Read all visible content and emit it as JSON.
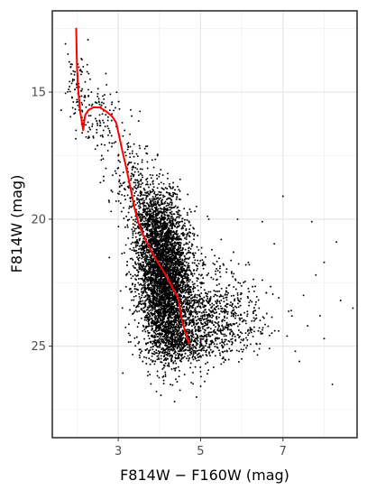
{
  "chart_data": {
    "type": "scatter",
    "title": "",
    "xlabel": "F814W − F160W (mag)",
    "ylabel": "F814W (mag)",
    "xlim": [
      1.4,
      8.8
    ],
    "ylim": [
      28.6,
      11.8
    ],
    "y_reversed": true,
    "grid": true,
    "x_ticks": [
      3,
      5,
      7
    ],
    "x_tick_labels": [
      "3",
      "5",
      "7"
    ],
    "y_ticks": [
      15,
      20,
      25
    ],
    "y_tick_labels": [
      "15",
      "20",
      "25"
    ],
    "x_minor_ticks": [
      2,
      4,
      6,
      8
    ],
    "y_minor_ticks": [
      12.5,
      17.5,
      22.5,
      27.5
    ],
    "scatter_color": "#000000",
    "line_color": "#ff0000",
    "series": [
      {
        "type": "scatter",
        "points": [
          [
            1.72,
            13.1
          ],
          [
            1.78,
            13.5
          ],
          [
            1.85,
            14.0
          ],
          [
            1.9,
            14.5
          ],
          [
            1.95,
            14.9
          ],
          [
            2.0,
            15.3
          ],
          [
            2.05,
            15.7
          ],
          [
            2.1,
            14.3
          ],
          [
            2.15,
            14.0
          ],
          [
            2.2,
            15.2
          ],
          [
            2.25,
            15.8
          ],
          [
            2.3,
            16.4
          ],
          [
            2.4,
            16.8
          ],
          [
            2.5,
            17.1
          ],
          [
            2.6,
            17.5
          ],
          [
            2.7,
            18.0
          ],
          [
            2.2,
            14.6
          ],
          [
            2.35,
            15.0
          ],
          [
            2.45,
            15.4
          ],
          [
            2.55,
            15.9
          ],
          [
            2.65,
            16.2
          ],
          [
            2.8,
            16.6
          ],
          [
            2.9,
            17.0
          ],
          [
            3.0,
            17.5
          ],
          [
            1.85,
            13.9
          ],
          [
            1.95,
            14.2
          ],
          [
            2.05,
            14.8
          ],
          [
            2.12,
            16.0
          ],
          [
            2.3,
            15.5
          ],
          [
            2.5,
            16.3
          ],
          [
            2.75,
            17.3
          ],
          [
            2.95,
            18.2
          ],
          [
            3.1,
            16.2
          ],
          [
            3.25,
            17.0
          ],
          [
            3.4,
            17.8
          ],
          [
            3.55,
            18.5
          ],
          [
            3.15,
            18.8
          ],
          [
            3.3,
            19.3
          ],
          [
            3.5,
            19.8
          ],
          [
            3.65,
            20.2
          ],
          [
            4.2,
            18.4
          ],
          [
            4.5,
            18.9
          ],
          [
            4.9,
            19.5
          ],
          [
            5.2,
            20.0
          ],
          [
            5.5,
            20.8
          ],
          [
            5.8,
            21.3
          ],
          [
            6.1,
            21.8
          ],
          [
            6.5,
            22.4
          ],
          [
            6.9,
            23.1
          ],
          [
            7.2,
            23.6
          ],
          [
            7.6,
            24.2
          ],
          [
            8.0,
            24.7
          ],
          [
            6.0,
            23.9
          ],
          [
            6.4,
            24.4
          ],
          [
            7.1,
            24.6
          ],
          [
            7.3,
            25.2
          ],
          [
            6.6,
            22.9
          ],
          [
            7.5,
            23.0
          ],
          [
            7.9,
            23.8
          ],
          [
            8.4,
            23.2
          ],
          [
            8.7,
            23.5
          ],
          [
            8.0,
            21.7
          ],
          [
            7.0,
            19.1
          ],
          [
            7.7,
            20.1
          ],
          [
            8.3,
            20.9
          ],
          [
            6.5,
            20.1
          ],
          [
            5.9,
            20.0
          ],
          [
            4.4,
            26.3
          ],
          [
            5.0,
            26.0
          ],
          [
            5.5,
            25.7
          ],
          [
            6.0,
            25.5
          ],
          [
            7.4,
            25.6
          ],
          [
            8.2,
            26.5
          ],
          [
            4.9,
            27.0
          ],
          [
            4.3,
            25.9
          ],
          [
            3.9,
            25.6
          ],
          [
            5.1,
            24.6
          ],
          [
            5.7,
            25.1
          ],
          [
            6.3,
            25.2
          ],
          [
            7.8,
            22.2
          ]
        ],
        "clusters": [
          {
            "cx": 4.15,
            "cy": 22.7,
            "sx": 0.33,
            "sy": 1.35,
            "n": 2600
          },
          {
            "cx": 4.05,
            "cy": 21.3,
            "sx": 0.3,
            "sy": 1.05,
            "n": 1200
          },
          {
            "cx": 3.85,
            "cy": 20.0,
            "sx": 0.28,
            "sy": 0.75,
            "n": 500
          },
          {
            "cx": 4.9,
            "cy": 23.6,
            "sx": 0.6,
            "sy": 1.0,
            "n": 700
          },
          {
            "cx": 5.6,
            "cy": 24.1,
            "sx": 0.55,
            "sy": 0.7,
            "n": 320
          },
          {
            "cx": 4.5,
            "cy": 24.8,
            "sx": 0.4,
            "sy": 0.45,
            "n": 450
          },
          {
            "cx": 3.3,
            "cy": 18.3,
            "sx": 0.25,
            "sy": 0.85,
            "n": 160
          },
          {
            "cx": 2.5,
            "cy": 16.0,
            "sx": 0.35,
            "sy": 0.7,
            "n": 110
          },
          {
            "cx": 2.0,
            "cy": 14.6,
            "sx": 0.15,
            "sy": 0.6,
            "n": 50
          }
        ]
      },
      {
        "type": "line",
        "points": [
          [
            1.98,
            12.5
          ],
          [
            1.99,
            13.2
          ],
          [
            2.0,
            14.0
          ],
          [
            2.02,
            14.7
          ],
          [
            2.05,
            15.3
          ],
          [
            2.08,
            15.8
          ],
          [
            2.12,
            16.2
          ],
          [
            2.15,
            16.5
          ],
          [
            2.18,
            16.1
          ],
          [
            2.2,
            15.9
          ],
          [
            2.28,
            15.7
          ],
          [
            2.4,
            15.6
          ],
          [
            2.55,
            15.6
          ],
          [
            2.7,
            15.75
          ],
          [
            2.85,
            15.95
          ],
          [
            2.95,
            16.2
          ],
          [
            3.02,
            16.7
          ],
          [
            3.1,
            17.3
          ],
          [
            3.2,
            18.0
          ],
          [
            3.3,
            18.8
          ],
          [
            3.4,
            19.6
          ],
          [
            3.5,
            20.2
          ],
          [
            3.6,
            20.6
          ],
          [
            3.72,
            21.0
          ],
          [
            3.85,
            21.4
          ],
          [
            4.0,
            21.8
          ],
          [
            4.12,
            22.1
          ],
          [
            4.22,
            22.4
          ],
          [
            4.35,
            22.8
          ],
          [
            4.45,
            23.1
          ],
          [
            4.5,
            23.5
          ],
          [
            4.55,
            24.0
          ],
          [
            4.62,
            24.4
          ],
          [
            4.68,
            24.7
          ],
          [
            4.72,
            24.9
          ]
        ]
      }
    ]
  }
}
